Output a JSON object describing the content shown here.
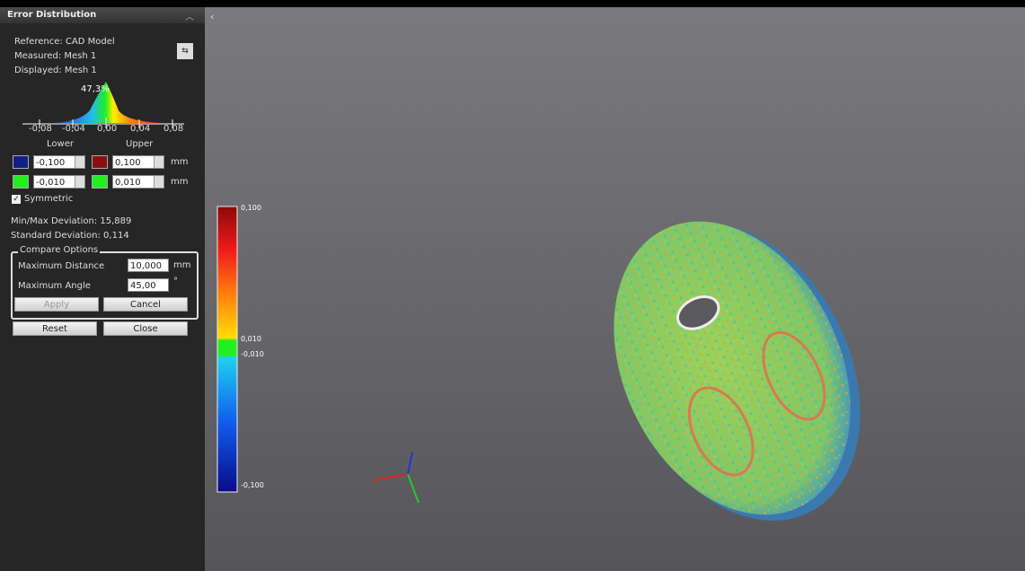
{
  "panel": {
    "title": "Error Distribution",
    "info": [
      "Reference: CAD Model",
      "Measured: Mesh 1",
      "Displayed: Mesh 1"
    ],
    "histogram": {
      "peak_label": "47,3%",
      "ticks": [
        "-0,08",
        "-0,04",
        "0,00",
        "0,04",
        "0,08"
      ]
    },
    "lower_label": "Lower",
    "upper_label": "Upper",
    "ranges": [
      {
        "lower": "-0,100",
        "upper": "0,100",
        "unit": "mm"
      },
      {
        "lower": "-0,010",
        "upper": "0,010",
        "unit": "mm"
      }
    ],
    "symmetric": "Symmetric",
    "min_max": "Min/Max Deviation: 15,889",
    "std": "Standard Deviation: 0,114",
    "compare": {
      "title": "Compare Options",
      "rows": [
        {
          "label": "Maximum Distance",
          "value": "10,000",
          "unit": "mm"
        },
        {
          "label": "Maximum Angle",
          "value": "45,00",
          "unit": "°"
        }
      ],
      "apply": "Apply",
      "cancel": "Cancel"
    },
    "reset": "Reset",
    "close": "Close"
  },
  "color_bar": {
    "labels": [
      "0,100",
      "0,010",
      "-0,010",
      "-0,100"
    ]
  }
}
